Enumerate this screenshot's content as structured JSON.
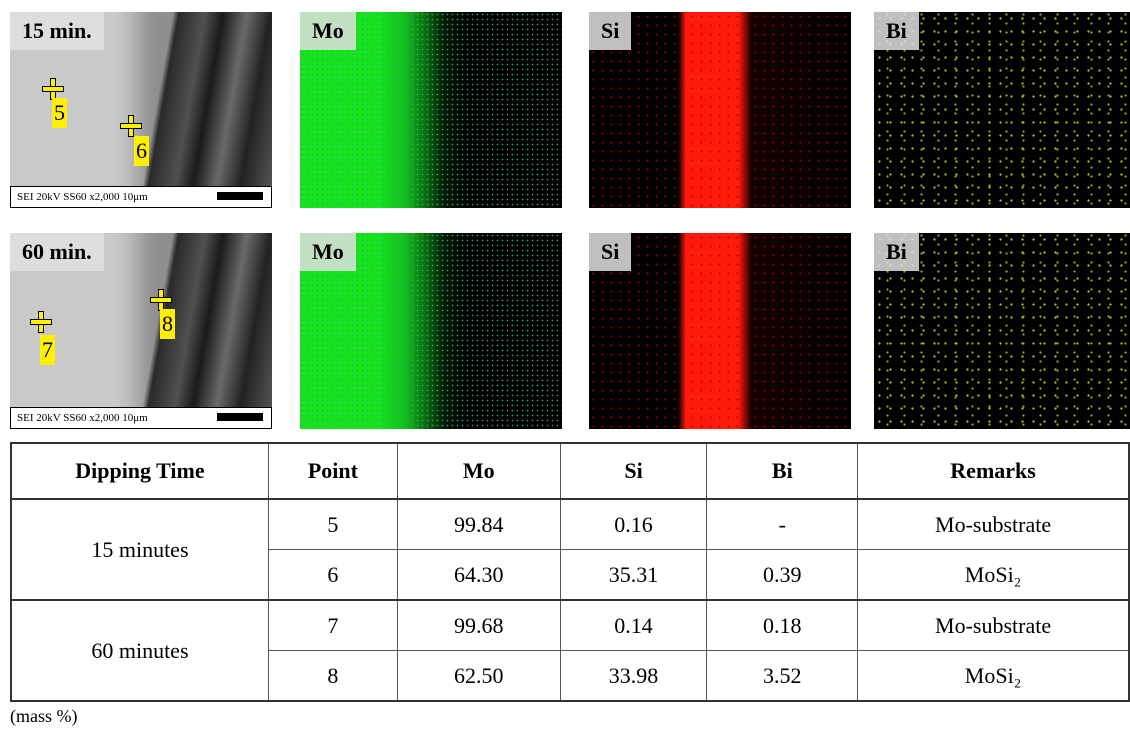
{
  "rows": [
    {
      "label": "15 min.",
      "points": [
        "5",
        "6"
      ],
      "caption": "SEI  20kV  SS60  x2,000    10μm",
      "maps": [
        "Mo",
        "Si",
        "Bi"
      ]
    },
    {
      "label": "60 min.",
      "points": [
        "7",
        "8"
      ],
      "caption": "SEI  20kV  SS60  x2,000    10μm",
      "maps": [
        "Mo",
        "Si",
        "Bi"
      ]
    }
  ],
  "table": {
    "header": [
      "Dipping Time",
      "Point",
      "Mo",
      "Si",
      "Bi",
      "Remarks"
    ],
    "groups": [
      {
        "time": "15 minutes",
        "rows": [
          [
            "5",
            "99.84",
            "0.16",
            "-",
            "Mo-substrate"
          ],
          [
            "6",
            "64.30",
            "35.31",
            "0.39",
            "MoSi₂"
          ]
        ]
      },
      {
        "time": "60 minutes",
        "rows": [
          [
            "7",
            "99.68",
            "0.14",
            "0.18",
            "Mo-substrate"
          ],
          [
            "8",
            "62.50",
            "33.98",
            "3.52",
            "MoSi₂"
          ]
        ]
      }
    ]
  },
  "note": "(mass %)"
}
